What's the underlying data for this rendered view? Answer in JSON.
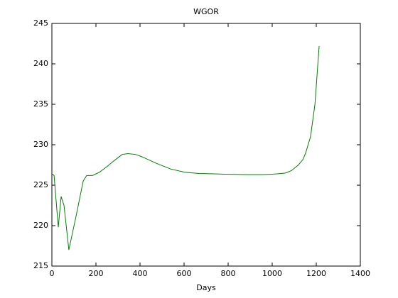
{
  "chart_data": {
    "type": "line",
    "title": "WGOR",
    "x_label": "Days",
    "x": [
      0,
      10,
      29,
      42,
      55,
      77,
      110,
      142,
      158,
      184,
      216,
      250,
      281,
      319,
      345,
      380,
      410,
      474,
      539,
      603,
      668,
      732,
      800,
      894,
      960,
      1023,
      1060,
      1087,
      1119,
      1140,
      1152,
      1174,
      1194,
      1213
    ],
    "series": [
      {
        "name": "WGOR",
        "color": "#007f00",
        "values": [
          226.4,
          226.2,
          219.8,
          223.6,
          222.5,
          217.0,
          221.2,
          225.5,
          226.2,
          226.2,
          226.6,
          227.3,
          228.0,
          228.8,
          228.9,
          228.8,
          228.5,
          227.7,
          227.0,
          226.6,
          226.45,
          226.4,
          226.35,
          226.3,
          226.3,
          226.4,
          226.5,
          226.8,
          227.5,
          228.2,
          229.0,
          231.0,
          235.0,
          242.2
        ]
      }
    ],
    "xlim": [
      0,
      1400
    ],
    "xticks": [
      0,
      200,
      400,
      600,
      800,
      1000,
      1200,
      1400
    ],
    "ylim": [
      215,
      245
    ],
    "yticks": [
      215,
      220,
      225,
      230,
      235,
      240,
      245
    ],
    "grid": false
  }
}
